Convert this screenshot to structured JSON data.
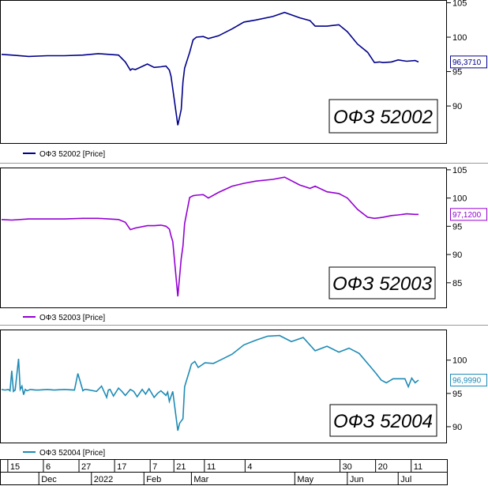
{
  "chart_data": [
    {
      "type": "line",
      "title": "ОФЗ 52002",
      "legend": "ОФЗ 52002 [Price]",
      "last_value_label": "96,3710",
      "color": "#00008b",
      "y_ticks": [
        90,
        95,
        100,
        105
      ],
      "ylim": [
        84.5,
        105.4
      ],
      "series": [
        {
          "name": "ОФЗ 52002 [Price]",
          "x": [
            "2021-11-09",
            "2021-11-15",
            "2021-11-25",
            "2021-12-06",
            "2021-12-16",
            "2021-12-27",
            "2022-01-05",
            "2022-01-17",
            "2022-01-21",
            "2022-01-24",
            "2022-01-25",
            "2022-01-27",
            "2022-02-03",
            "2022-02-07",
            "2022-02-11",
            "2022-02-14",
            "2022-02-16",
            "2022-02-17",
            "2022-02-18",
            "2022-02-21",
            "2022-02-23",
            "2022-02-24",
            "2022-02-25",
            "2022-02-28",
            "2022-03-02",
            "2022-03-04",
            "2022-03-08",
            "2022-03-11",
            "2022-03-17",
            "2022-03-25",
            "2022-04-01",
            "2022-04-08",
            "2022-04-18",
            "2022-04-25",
            "2022-05-04",
            "2022-05-10",
            "2022-05-13",
            "2022-05-20",
            "2022-05-27",
            "2022-06-01",
            "2022-06-07",
            "2022-06-13",
            "2022-06-17",
            "2022-06-20",
            "2022-06-22",
            "2022-06-27",
            "2022-07-01",
            "2022-07-06",
            "2022-07-11",
            "2022-07-13"
          ],
          "values": [
            97.5,
            97.4,
            97.2,
            97.3,
            97.3,
            97.4,
            97.6,
            97.4,
            96.4,
            95.2,
            95.4,
            95.3,
            96.1,
            95.6,
            95.7,
            95.8,
            95.2,
            94.3,
            92.5,
            87.2,
            89.5,
            93.5,
            95.5,
            97.8,
            99.6,
            100.0,
            100.1,
            99.8,
            100.2,
            101.2,
            102.2,
            102.5,
            103.0,
            103.6,
            102.8,
            102.4,
            101.6,
            101.6,
            101.8,
            100.8,
            99.0,
            97.8,
            96.3,
            96.4,
            96.3,
            96.4,
            96.7,
            96.5,
            96.6,
            96.4
          ]
        }
      ]
    },
    {
      "type": "line",
      "title": "ОФЗ 52003",
      "legend": "ОФЗ 52003 [Price]",
      "last_value_label": "97,1200",
      "color": "#9400d3",
      "y_ticks": [
        85,
        90,
        95,
        100,
        105
      ],
      "ylim": [
        80.5,
        105.4
      ],
      "series": [
        {
          "name": "ОФЗ 52003 [Price]",
          "x": [
            "2021-11-09",
            "2021-11-15",
            "2021-11-25",
            "2021-12-06",
            "2021-12-16",
            "2021-12-27",
            "2022-01-05",
            "2022-01-17",
            "2022-01-21",
            "2022-01-24",
            "2022-01-27",
            "2022-02-03",
            "2022-02-07",
            "2022-02-11",
            "2022-02-14",
            "2022-02-16",
            "2022-02-17",
            "2022-02-18",
            "2022-02-21",
            "2022-02-23",
            "2022-02-24",
            "2022-02-25",
            "2022-02-28",
            "2022-03-02",
            "2022-03-04",
            "2022-03-08",
            "2022-03-11",
            "2022-03-17",
            "2022-03-25",
            "2022-04-01",
            "2022-04-08",
            "2022-04-18",
            "2022-04-25",
            "2022-05-04",
            "2022-05-10",
            "2022-05-13",
            "2022-05-20",
            "2022-05-27",
            "2022-06-01",
            "2022-06-07",
            "2022-06-13",
            "2022-06-17",
            "2022-06-20",
            "2022-06-22",
            "2022-06-27",
            "2022-07-01",
            "2022-07-06",
            "2022-07-11",
            "2022-07-13"
          ],
          "values": [
            96.2,
            96.1,
            96.3,
            96.3,
            96.3,
            96.4,
            96.4,
            96.2,
            95.7,
            94.4,
            94.7,
            95.1,
            95.1,
            95.2,
            95.0,
            94.5,
            93.3,
            92.3,
            82.6,
            89.3,
            91.5,
            95.5,
            100.1,
            100.4,
            100.5,
            100.6,
            100.0,
            101.0,
            102.1,
            102.6,
            103.0,
            103.3,
            103.7,
            102.3,
            101.7,
            102.1,
            101.1,
            100.8,
            100.0,
            98.0,
            96.6,
            96.4,
            96.5,
            96.6,
            96.9,
            97.0,
            97.2,
            97.1,
            97.1
          ]
        }
      ]
    },
    {
      "type": "line",
      "title": "ОФЗ 52004",
      "legend": "ОФЗ 52004 [Price]",
      "last_value_label": "96,9990",
      "color": "#1e8bb5",
      "y_ticks": [
        90,
        95,
        100
      ],
      "ylim": [
        87.5,
        104.6
      ],
      "series": [
        {
          "name": "ОФЗ 52004 [Price]",
          "x": [
            "2021-11-09",
            "2021-11-11",
            "2021-11-13",
            "2021-11-14",
            "2021-11-15",
            "2021-11-16",
            "2021-11-17",
            "2021-11-19",
            "2021-11-20",
            "2021-11-21",
            "2021-11-22",
            "2021-11-23",
            "2021-11-24",
            "2021-11-26",
            "2021-11-29",
            "2021-12-01",
            "2021-12-06",
            "2021-12-10",
            "2021-12-16",
            "2021-12-22",
            "2021-12-24",
            "2021-12-27",
            "2021-12-28",
            "2021-12-29",
            "2022-01-04",
            "2022-01-07",
            "2022-01-10",
            "2022-01-11",
            "2022-01-12",
            "2022-01-14",
            "2022-01-17",
            "2022-01-19",
            "2022-01-21",
            "2022-01-24",
            "2022-01-26",
            "2022-01-28",
            "2022-01-31",
            "2022-02-02",
            "2022-02-04",
            "2022-02-07",
            "2022-02-09",
            "2022-02-11",
            "2022-02-14",
            "2022-02-15",
            "2022-02-16",
            "2022-02-18",
            "2022-02-21",
            "2022-02-22",
            "2022-02-24",
            "2022-02-25",
            "2022-02-28",
            "2022-03-01",
            "2022-03-03",
            "2022-03-05",
            "2022-03-09",
            "2022-03-14",
            "2022-03-18",
            "2022-03-25",
            "2022-04-01",
            "2022-04-08",
            "2022-04-15",
            "2022-04-22",
            "2022-04-29",
            "2022-05-06",
            "2022-05-13",
            "2022-05-20",
            "2022-05-27",
            "2022-06-02",
            "2022-06-08",
            "2022-06-14",
            "2022-06-18",
            "2022-06-21",
            "2022-06-24",
            "2022-06-28",
            "2022-07-01",
            "2022-07-05",
            "2022-07-07",
            "2022-07-09",
            "2022-07-11",
            "2022-07-13"
          ],
          "values": [
            95.6,
            95.5,
            95.6,
            95.4,
            98.4,
            95.3,
            95.5,
            100.2,
            95.6,
            96.1,
            94.8,
            95.6,
            95.4,
            95.6,
            95.5,
            95.5,
            95.6,
            95.5,
            95.6,
            95.5,
            98.0,
            95.4,
            95.6,
            95.6,
            95.3,
            96.1,
            94.4,
            95.5,
            95.6,
            94.6,
            95.8,
            95.3,
            94.7,
            95.6,
            95.3,
            94.5,
            95.6,
            94.9,
            95.7,
            94.4,
            95.0,
            95.4,
            94.7,
            95.2,
            93.8,
            95.3,
            89.4,
            90.5,
            91.2,
            96.0,
            98.5,
            99.4,
            99.8,
            98.9,
            99.6,
            99.5,
            100.0,
            100.9,
            102.3,
            103.0,
            103.6,
            103.7,
            102.8,
            103.4,
            101.4,
            102.1,
            101.2,
            101.8,
            101.0,
            99.2,
            98.0,
            97.0,
            96.6,
            97.2,
            97.2,
            97.2,
            96.0,
            97.3,
            96.6,
            97.0
          ]
        }
      ]
    }
  ],
  "time_axis": {
    "upper_labels": [
      "15",
      "6",
      "27",
      "17",
      "7",
      "21",
      "11",
      "4",
      "30",
      "20",
      "11"
    ],
    "lower_labels": [
      "Dec",
      "2022",
      "Feb",
      "Mar",
      "May",
      "Jun",
      "Jul"
    ]
  }
}
